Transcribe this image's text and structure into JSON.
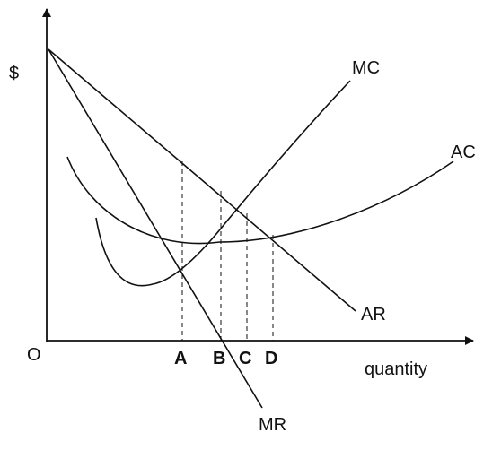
{
  "axes": {
    "y_label": "$",
    "x_label": "quantity",
    "origin_label": "O"
  },
  "curves": {
    "mc": "MC",
    "ac": "AC",
    "ar": "AR",
    "mr": "MR"
  },
  "quantities": {
    "a": "A",
    "b": "B",
    "c": "C",
    "d": "D"
  },
  "colors": {
    "ink": "#111111",
    "background": "#ffffff"
  }
}
